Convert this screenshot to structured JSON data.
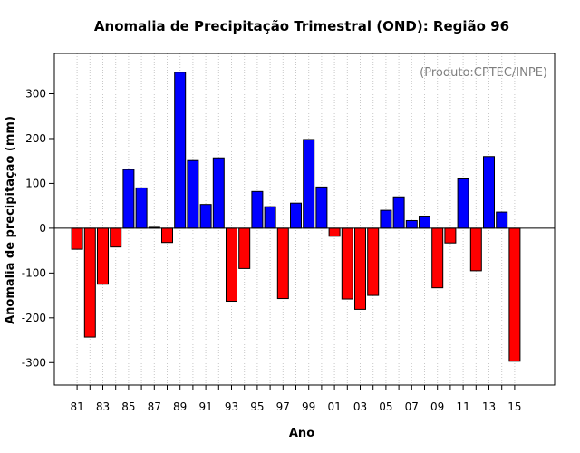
{
  "chart_data": {
    "type": "bar",
    "title": "Anomalia de Precipitação Trimestral (OND): Região 96",
    "xlabel": "Ano",
    "ylabel": "Anomalia de precipitação (mm)",
    "note": "(Produto:CPTEC/INPE)",
    "ylim": [
      -350,
      390
    ],
    "yticks": [
      -300,
      -200,
      -100,
      0,
      100,
      200,
      300
    ],
    "grid": "vertical-dotted",
    "positive_color": "#0000ff",
    "negative_color": "#ff0000",
    "categories": [
      "81",
      "82",
      "83",
      "84",
      "85",
      "86",
      "87",
      "88",
      "89",
      "90",
      "91",
      "92",
      "93",
      "94",
      "95",
      "96",
      "97",
      "98",
      "99",
      "00",
      "01",
      "02",
      "03",
      "04",
      "05",
      "06",
      "07",
      "08",
      "09",
      "10",
      "11",
      "12",
      "13",
      "14",
      "15"
    ],
    "tick_labels": [
      "81",
      "83",
      "85",
      "87",
      "89",
      "91",
      "93",
      "95",
      "97",
      "99",
      "01",
      "03",
      "05",
      "07",
      "09",
      "11",
      "13",
      "15"
    ],
    "values": [
      -47,
      -243,
      -125,
      -42,
      131,
      90,
      2,
      -32,
      348,
      151,
      53,
      157,
      -163,
      -90,
      82,
      48,
      -157,
      56,
      198,
      92,
      -18,
      -158,
      -181,
      -150,
      40,
      70,
      17,
      27,
      -133,
      -33,
      110,
      -95,
      160,
      36,
      -297
    ]
  }
}
